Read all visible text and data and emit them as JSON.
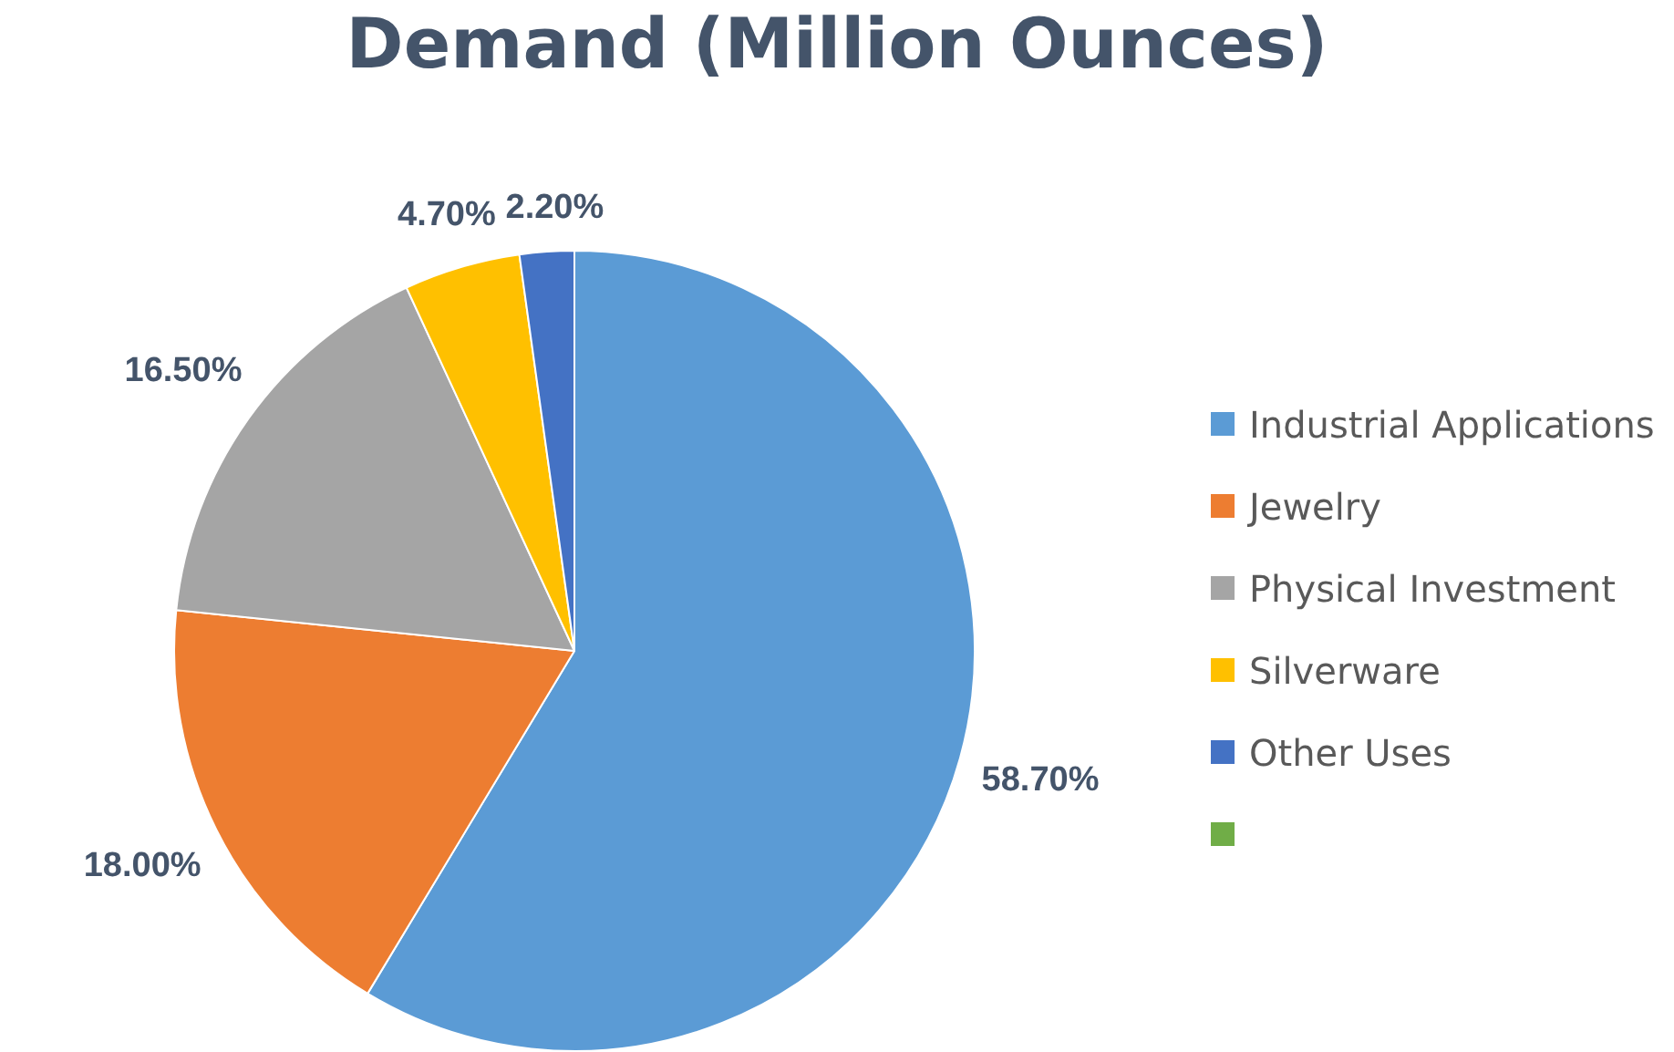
{
  "chart_data": {
    "type": "pie",
    "title": "Demand (Million Ounces)",
    "categories": [
      "Industrial Applications",
      "Jewelry",
      "Physical Investment",
      "Silverware",
      "Other Uses",
      null
    ],
    "values": [
      58.7,
      18.0,
      16.5,
      4.7,
      2.2,
      0
    ],
    "colors": [
      "#5b9bd5",
      "#ed7d31",
      "#a5a5a5",
      "#ffc000",
      "#4472c4",
      "#70ad47"
    ],
    "value_labels": [
      "58.70%",
      "18.00%",
      "16.50%",
      "4.70%",
      "2.20%",
      null
    ],
    "legend": "right"
  }
}
